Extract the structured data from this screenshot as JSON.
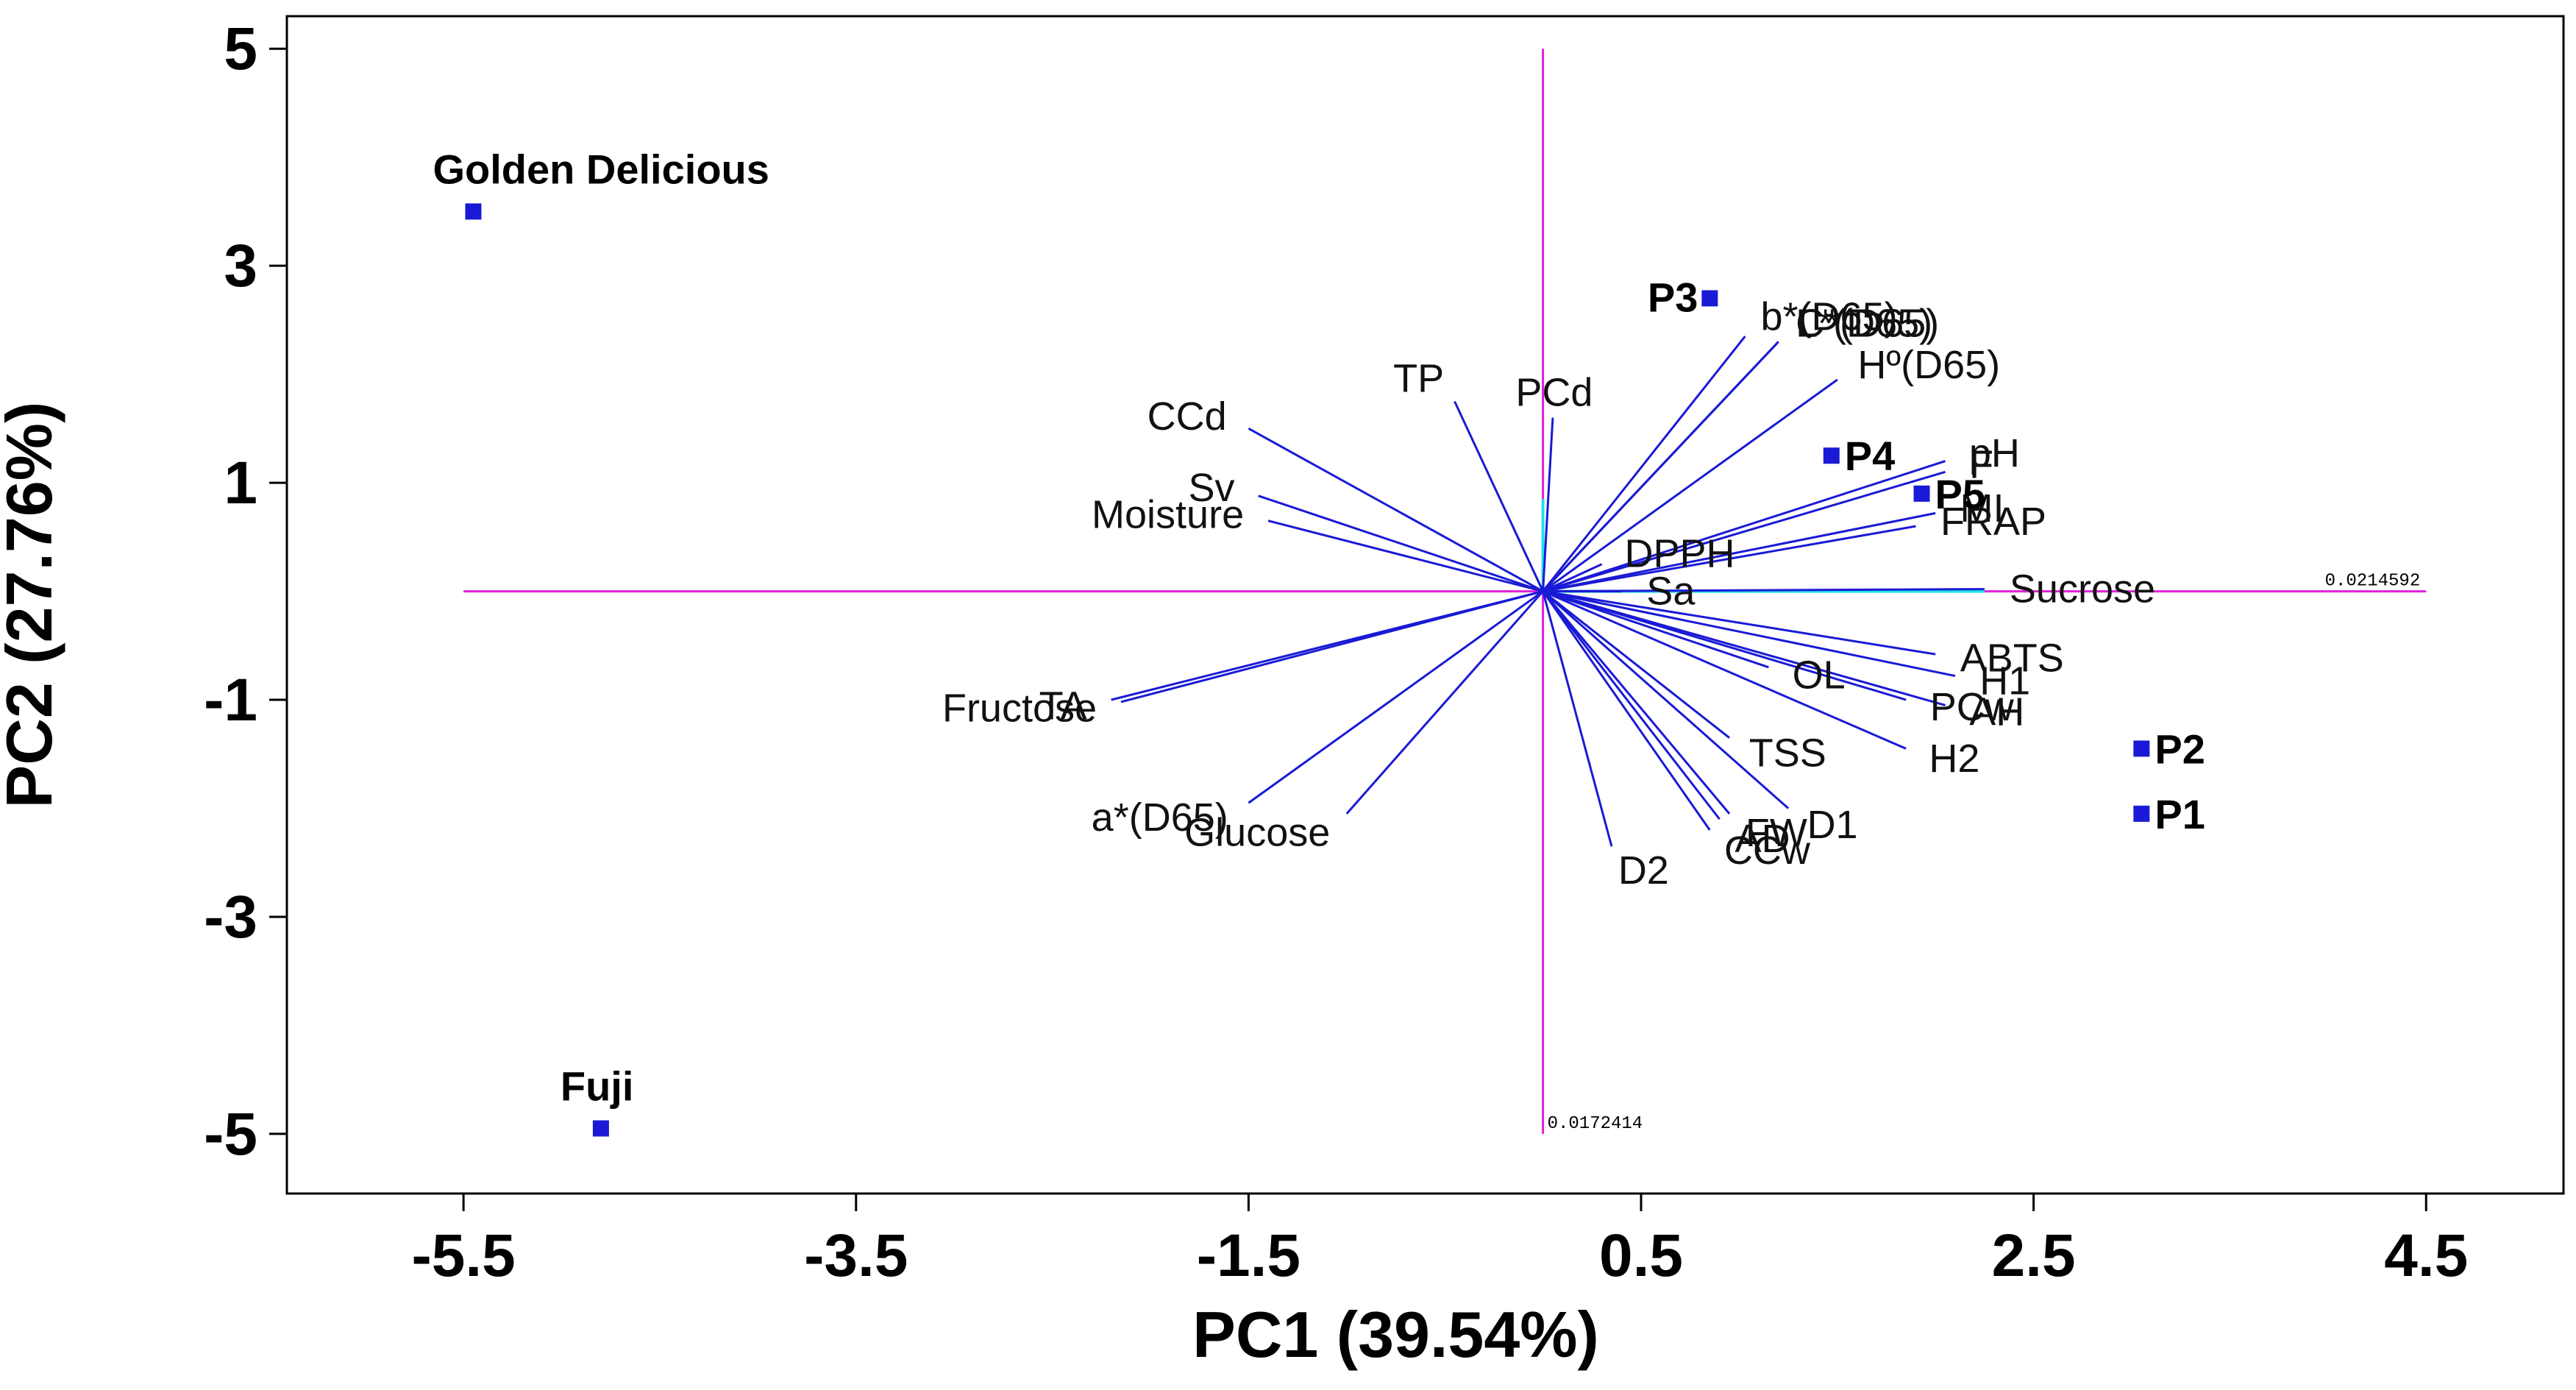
{
  "chart_data": {
    "type": "scatter",
    "subtype": "biplot",
    "xlabel": "PC1 (39.54%)",
    "ylabel": "PC2 (27.76%)",
    "xlim": [
      -6.4,
      5.2
    ],
    "ylim": [
      -5.55,
      5.3
    ],
    "xticks": [
      -5.5,
      -3.5,
      -1.5,
      0.5,
      2.5,
      4.5
    ],
    "xtick_labels": [
      "-5.5",
      "-3.5",
      "-1.5",
      "0.5",
      "2.5",
      "4.5"
    ],
    "yticks": [
      5,
      3,
      1,
      -1,
      -3,
      -5
    ],
    "ytick_labels": [
      "5",
      "3",
      "1",
      "-1",
      "-3",
      "-5"
    ],
    "grid": false,
    "vector_origin": [
      0,
      0
    ],
    "scale_labels": {
      "x_end": "0.0214592",
      "y_end": "0.0172414"
    },
    "colors": {
      "vectors": "#1a1ad6",
      "points": "#1a1ad6",
      "reference_lines": "#e020d8",
      "axis_segments": "#22e0e8"
    },
    "observations": [
      {
        "name": "Golden Delicious",
        "x": -5.45,
        "y": 3.5
      },
      {
        "name": "Fuji",
        "x": -4.8,
        "y": -4.95
      },
      {
        "name": "P3",
        "x": 0.85,
        "y": 2.7
      },
      {
        "name": "P4",
        "x": 1.47,
        "y": 1.25
      },
      {
        "name": "P5",
        "x": 1.93,
        "y": 0.9
      },
      {
        "name": "P2",
        "x": 3.05,
        "y": -1.45
      },
      {
        "name": "P1",
        "x": 3.05,
        "y": -2.05
      }
    ],
    "variables": [
      {
        "name": "b*(D65)",
        "x": 1.03,
        "y": 2.35
      },
      {
        "name": "C*(D65)",
        "x": 1.2,
        "y": 2.3
      },
      {
        "name": "L*(D65)",
        "x": 1.2,
        "y": 2.3
      },
      {
        "name": "Hº(D65)",
        "x": 1.5,
        "y": 1.95
      },
      {
        "name": "pH",
        "x": 2.05,
        "y": 1.2
      },
      {
        "name": "F",
        "x": 2.05,
        "y": 1.1
      },
      {
        "name": "MI",
        "x": 2.0,
        "y": 0.72
      },
      {
        "name": "DPPH",
        "x": 0.3,
        "y": 0.25
      },
      {
        "name": "FRAP",
        "x": 1.9,
        "y": 0.6
      },
      {
        "name": "Sucrose",
        "x": 2.25,
        "y": 0.02
      },
      {
        "name": "Sa",
        "x": 0.4,
        "y": 0.0
      },
      {
        "name": "ABTS",
        "x": 2.0,
        "y": -0.58
      },
      {
        "name": "H1",
        "x": 2.1,
        "y": -0.78
      },
      {
        "name": "OL",
        "x": 1.15,
        "y": -0.7
      },
      {
        "name": "AH",
        "x": 2.05,
        "y": -1.05
      },
      {
        "name": "PCw",
        "x": 1.85,
        "y": -1.0
      },
      {
        "name": "H2",
        "x": 1.85,
        "y": -1.45
      },
      {
        "name": "TSS",
        "x": 0.95,
        "y": -1.35
      },
      {
        "name": "D1",
        "x": 1.25,
        "y": -2.0
      },
      {
        "name": "AD",
        "x": 0.9,
        "y": -2.1
      },
      {
        "name": "CCw",
        "x": 0.85,
        "y": -2.2
      },
      {
        "name": "FW",
        "x": 0.95,
        "y": -2.05
      },
      {
        "name": "D2",
        "x": 0.35,
        "y": -2.35
      },
      {
        "name": "TP",
        "x": -0.45,
        "y": 1.75
      },
      {
        "name": "PCd",
        "x": 0.05,
        "y": 1.6
      },
      {
        "name": "CCd",
        "x": -1.5,
        "y": 1.5
      },
      {
        "name": "Sv",
        "x": -1.45,
        "y": 0.88
      },
      {
        "name": "Moisture",
        "x": -1.4,
        "y": 0.65
      },
      {
        "name": "TA",
        "x": -2.2,
        "y": -1.0
      },
      {
        "name": "Fructose",
        "x": -2.15,
        "y": -1.02
      },
      {
        "name": "a*(D65)",
        "x": -1.5,
        "y": -1.95
      },
      {
        "name": "Glucose",
        "x": -1.0,
        "y": -2.05
      }
    ]
  }
}
